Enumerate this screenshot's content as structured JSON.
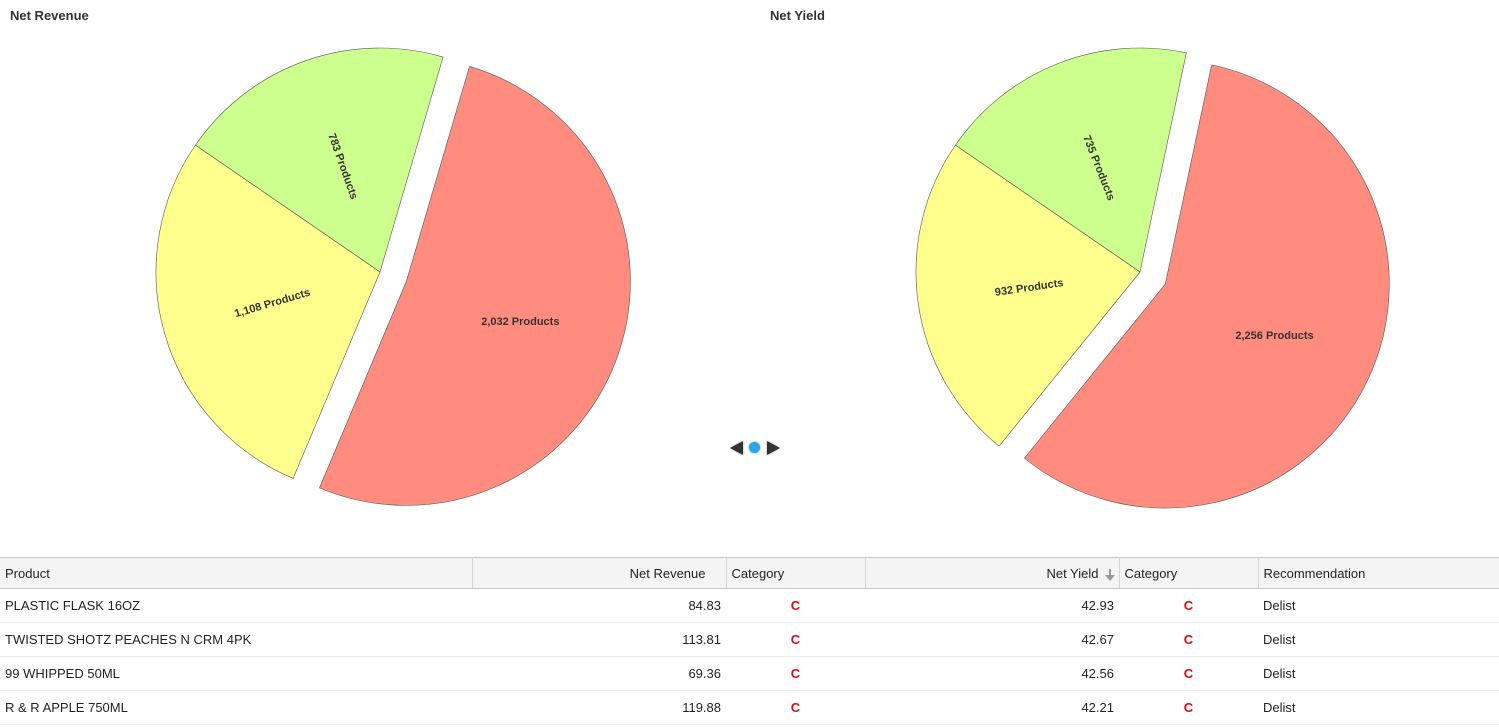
{
  "colors": {
    "green": "#ccff8d",
    "yellow": "#ffff8d",
    "red": "#ff8c7f",
    "category_c": "#cc1111",
    "pager_dot": "#29a8e8"
  },
  "chart_data": [
    {
      "type": "pie",
      "title": "Net Revenue",
      "slices": [
        {
          "label": "783 Products",
          "value": 783,
          "color": "#ccff8d",
          "exploded": false
        },
        {
          "label": "2,032 Products",
          "value": 2032,
          "color": "#ff8c7f",
          "exploded": true
        },
        {
          "label": "1,108 Products",
          "value": 1108,
          "color": "#ffff8d",
          "exploded": false
        }
      ]
    },
    {
      "type": "pie",
      "title": "Net Yield",
      "slices": [
        {
          "label": "735 Products",
          "value": 735,
          "color": "#ccff8d",
          "exploded": false
        },
        {
          "label": "2,256 Products",
          "value": 2256,
          "color": "#ff8c7f",
          "exploded": true
        },
        {
          "label": "932 Products",
          "value": 932,
          "color": "#ffff8d",
          "exploded": false
        }
      ]
    }
  ],
  "pager": {
    "prev_icon": "chevron-left-icon",
    "next_icon": "chevron-right-icon",
    "pages": 1,
    "current": 1
  },
  "table": {
    "columns": {
      "product": "Product",
      "net_revenue": "Net Revenue",
      "revenue_category": "Category",
      "net_yield": "Net Yield",
      "yield_category": "Category",
      "recommendation": "Recommendation"
    },
    "sort": {
      "column": "Net Yield",
      "direction": "descending",
      "icon": "sort-down-arrow-icon"
    },
    "rows": [
      {
        "product": "PLASTIC FLASK 16OZ",
        "net_revenue": "84.83",
        "revenue_category": "C",
        "net_yield": "42.93",
        "yield_category": "C",
        "recommendation": "Delist"
      },
      {
        "product": "TWISTED SHOTZ PEACHES N CRM 4PK",
        "net_revenue": "113.81",
        "revenue_category": "C",
        "net_yield": "42.67",
        "yield_category": "C",
        "recommendation": "Delist"
      },
      {
        "product": "99 WHIPPED 50ML",
        "net_revenue": "69.36",
        "revenue_category": "C",
        "net_yield": "42.56",
        "yield_category": "C",
        "recommendation": "Delist"
      },
      {
        "product": "R & R APPLE 750ML",
        "net_revenue": "119.88",
        "revenue_category": "C",
        "net_yield": "42.21",
        "yield_category": "C",
        "recommendation": "Delist"
      }
    ]
  }
}
